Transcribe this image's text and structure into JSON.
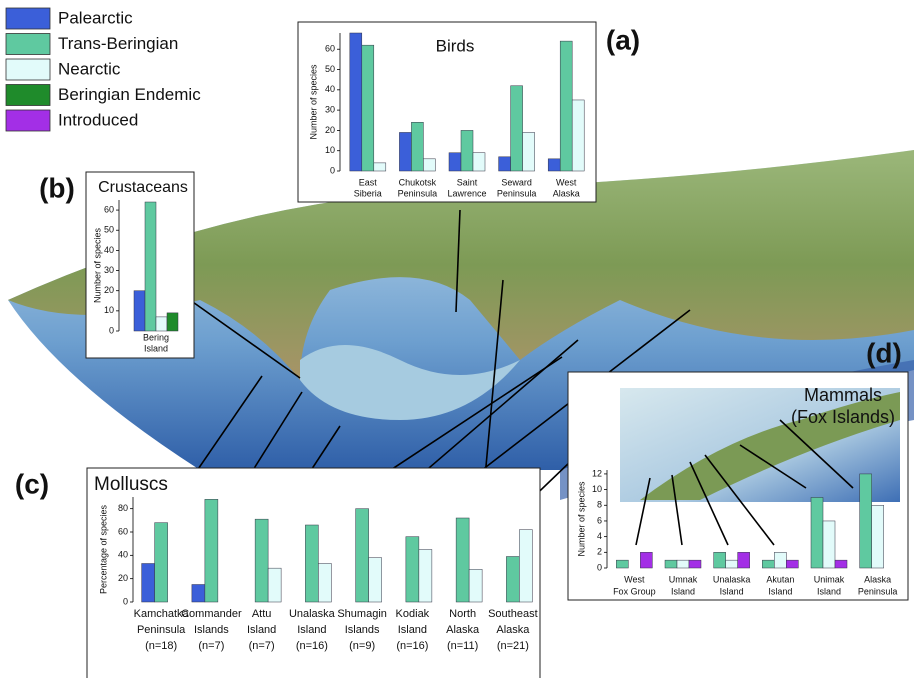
{
  "legend": [
    {
      "name": "Palearctic",
      "color": "#3b5fd9"
    },
    {
      "name": "Trans-Beringian",
      "color": "#5fc9a0"
    },
    {
      "name": "Nearctic",
      "color": "#e2fbfa"
    },
    {
      "name": "Beringian Endemic",
      "color": "#1f8b2b"
    },
    {
      "name": "Introduced",
      "color": "#a32fe6"
    }
  ],
  "chart_data": [
    {
      "type": "bar",
      "panel": "(a)",
      "title": "Birds",
      "y_label": "Number of species",
      "categories": [
        [
          "East",
          "Siberia"
        ],
        [
          "Chukotsk",
          "Peninsula"
        ],
        [
          "Saint",
          "Lawrence"
        ],
        [
          "Seward",
          "Peninsula"
        ],
        [
          "West",
          "Alaska"
        ]
      ],
      "series": [
        {
          "name": "Palearctic",
          "color": "#3b5fd9",
          "values": [
            68,
            19,
            9,
            7,
            6
          ]
        },
        {
          "name": "Trans-Beringian",
          "color": "#5fc9a0",
          "values": [
            62,
            24,
            20,
            42,
            64
          ]
        },
        {
          "name": "Nearctic",
          "color": "#e2fbfa",
          "values": [
            4,
            6,
            9,
            19,
            35
          ]
        }
      ],
      "ylim": [
        0,
        68
      ],
      "yticks": [
        0,
        10,
        20,
        30,
        40,
        50,
        60
      ]
    },
    {
      "type": "bar",
      "panel": "(b)",
      "title": "Crustaceans",
      "y_label": "Number of species",
      "categories": [
        [
          "Bering",
          "Island"
        ]
      ],
      "series": [
        {
          "name": "Palearctic",
          "color": "#3b5fd9",
          "values": [
            20
          ]
        },
        {
          "name": "Trans-Beringian",
          "color": "#5fc9a0",
          "values": [
            64
          ]
        },
        {
          "name": "Nearctic",
          "color": "#e2fbfa",
          "values": [
            7
          ]
        },
        {
          "name": "Beringian Endemic",
          "color": "#1f8b2b",
          "values": [
            9
          ]
        }
      ],
      "ylim": [
        0,
        65
      ],
      "yticks": [
        0,
        10,
        20,
        30,
        40,
        50,
        60
      ]
    },
    {
      "type": "bar",
      "panel": "(c)",
      "title": "Molluscs",
      "y_label": "Percentage of species",
      "categories": [
        [
          "Kamchatka",
          "Peninsula",
          "(n=18)"
        ],
        [
          "Commander",
          "Islands",
          "(n=7)"
        ],
        [
          "Attu",
          "Island",
          "(n=7)"
        ],
        [
          "Unalaska",
          "Island",
          "(n=16)"
        ],
        [
          "Shumagin",
          "Islands",
          "(n=9)"
        ],
        [
          "Kodiak",
          "Island",
          "(n=16)"
        ],
        [
          "North",
          "Alaska",
          "(n=11)"
        ],
        [
          "Southeast",
          "Alaska",
          "(n=21)"
        ]
      ],
      "series": [
        {
          "name": "Palearctic",
          "color": "#3b5fd9",
          "values": [
            33,
            15,
            0,
            0,
            0,
            0,
            0,
            0
          ]
        },
        {
          "name": "Trans-Beringian",
          "color": "#5fc9a0",
          "values": [
            68,
            88,
            71,
            66,
            80,
            56,
            72,
            39
          ]
        },
        {
          "name": "Nearctic",
          "color": "#e2fbfa",
          "values": [
            0,
            0,
            29,
            33,
            38,
            45,
            28,
            62
          ]
        }
      ],
      "ylim": [
        0,
        90
      ],
      "yticks": [
        0,
        20,
        40,
        60,
        80
      ]
    },
    {
      "type": "bar",
      "panel": "(d)",
      "title": [
        "Mammals",
        "(Fox Islands)"
      ],
      "y_label": "Number of species",
      "categories": [
        [
          "West",
          "Fox Group"
        ],
        [
          "Umnak",
          "Island"
        ],
        [
          "Unalaska",
          "Island"
        ],
        [
          "Akutan",
          "Island"
        ],
        [
          "Unimak",
          "Island"
        ],
        [
          "Alaska",
          "Peninsula"
        ]
      ],
      "series": [
        {
          "name": "Trans-Beringian",
          "color": "#5fc9a0",
          "values": [
            1,
            1,
            2,
            1,
            9,
            12
          ]
        },
        {
          "name": "Nearctic",
          "color": "#e2fbfa",
          "values": [
            0,
            1,
            1,
            2,
            6,
            8
          ]
        },
        {
          "name": "Introduced",
          "color": "#a32fe6",
          "values": [
            2,
            1,
            2,
            1,
            1,
            0
          ]
        }
      ],
      "ylim": [
        0,
        12.5
      ],
      "yticks": [
        0,
        2,
        4,
        6,
        8,
        10,
        12
      ]
    }
  ]
}
